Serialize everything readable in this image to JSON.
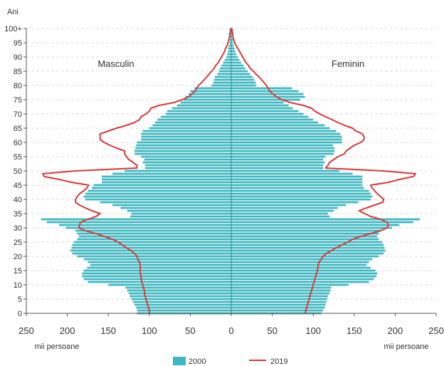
{
  "chart_data": {
    "type": "bar",
    "title": "",
    "ylabel": "Ani",
    "xlabel_left": "mii persoane",
    "xlabel_right": "mii persoane",
    "side_labels": {
      "left": "Masculin",
      "right": "Feminin"
    },
    "xlim": [
      -250,
      250
    ],
    "ylim": [
      0,
      100
    ],
    "x_ticks": [
      {
        "value": -250,
        "label": "250"
      },
      {
        "value": -200,
        "label": "200"
      },
      {
        "value": -150,
        "label": "150"
      },
      {
        "value": -100,
        "label": "100"
      },
      {
        "value": -50,
        "label": "50"
      },
      {
        "value": 0,
        "label": "0"
      },
      {
        "value": 50,
        "label": "50"
      },
      {
        "value": 100,
        "label": "100"
      },
      {
        "value": 150,
        "label": "150"
      },
      {
        "value": 200,
        "label": "200"
      },
      {
        "value": 250,
        "label": "250"
      }
    ],
    "y_ticks": [
      {
        "value": 0,
        "label": "0"
      },
      {
        "value": 5,
        "label": "5"
      },
      {
        "value": 10,
        "label": "10"
      },
      {
        "value": 15,
        "label": "15"
      },
      {
        "value": 20,
        "label": "20"
      },
      {
        "value": 25,
        "label": "25"
      },
      {
        "value": 30,
        "label": "30"
      },
      {
        "value": 35,
        "label": "35"
      },
      {
        "value": 40,
        "label": "40"
      },
      {
        "value": 45,
        "label": "45"
      },
      {
        "value": 50,
        "label": "50"
      },
      {
        "value": 55,
        "label": "55"
      },
      {
        "value": 60,
        "label": "60"
      },
      {
        "value": 65,
        "label": "65"
      },
      {
        "value": 70,
        "label": "70"
      },
      {
        "value": 75,
        "label": "75"
      },
      {
        "value": 80,
        "label": "80"
      },
      {
        "value": 85,
        "label": "85"
      },
      {
        "value": 90,
        "label": "90"
      },
      {
        "value": 95,
        "label": "95"
      },
      {
        "value": 100,
        "label": "100+"
      }
    ],
    "grid": true,
    "legend": {
      "position": "bottom-center"
    },
    "series": [
      {
        "name": "2000",
        "kind": "bar",
        "color": "#3fb8c2",
        "male": [
          115,
          115,
          116,
          118,
          120,
          122,
          124,
          125,
          127,
          129,
          150,
          175,
          180,
          182,
          182,
          180,
          176,
          172,
          175,
          180,
          188,
          194,
          196,
          195,
          194,
          192,
          188,
          186,
          188,
          190,
          202,
          210,
          225,
          232,
          123,
          122,
          127,
          135,
          145,
          160,
          178,
          180,
          178,
          175,
          170,
          168,
          158,
          158,
          158,
          145,
          130,
          105,
          105,
          108,
          106,
          110,
          118,
          118,
          117,
          116,
          115,
          110,
          110,
          110,
          108,
          100,
          96,
          93,
          90,
          86,
          80,
          78,
          72,
          66,
          62,
          58,
          56,
          52,
          50,
          45,
          24,
          22,
          21,
          20,
          17,
          15,
          14,
          12,
          10,
          8,
          6,
          5,
          4,
          4,
          3,
          2,
          2,
          1,
          1,
          1,
          1
        ],
        "female": [
          110,
          112,
          114,
          115,
          116,
          117,
          118,
          120,
          121,
          122,
          143,
          168,
          174,
          177,
          178,
          176,
          170,
          165,
          168,
          172,
          180,
          186,
          188,
          187,
          186,
          184,
          180,
          178,
          180,
          183,
          196,
          205,
          222,
          230,
          120,
          118,
          125,
          130,
          140,
          155,
          170,
          172,
          170,
          168,
          162,
          160,
          160,
          160,
          160,
          148,
          132,
          112,
          112,
          114,
          112,
          115,
          125,
          126,
          126,
          124,
          135,
          135,
          135,
          133,
          128,
          120,
          114,
          106,
          100,
          94,
          88,
          82,
          75,
          70,
          64,
          84,
          90,
          88,
          82,
          74,
          30,
          30,
          28,
          26,
          23,
          20,
          17,
          15,
          12,
          10,
          8,
          6,
          5,
          4,
          3,
          2,
          2,
          1,
          1,
          1,
          1
        ]
      },
      {
        "name": "2019",
        "kind": "line",
        "color": "#d63a3a",
        "male": [
          100,
          100,
          101,
          102,
          103,
          104,
          105,
          106,
          106,
          107,
          108,
          109,
          110,
          110,
          111,
          111,
          111,
          111,
          112,
          114,
          115,
          118,
          122,
          128,
          133,
          138,
          145,
          155,
          165,
          178,
          186,
          185,
          184,
          175,
          165,
          160,
          170,
          178,
          185,
          190,
          190,
          188,
          185,
          180,
          176,
          174,
          195,
          210,
          228,
          230,
          190,
          115,
          115,
          120,
          125,
          128,
          130,
          130,
          140,
          148,
          155,
          160,
          160,
          160,
          150,
          140,
          128,
          118,
          112,
          110,
          104,
          100,
          98,
          88,
          70,
          60,
          52,
          48,
          44,
          42,
          40,
          36,
          33,
          30,
          27,
          24,
          21,
          19,
          16,
          14,
          12,
          10,
          8,
          7,
          5,
          4,
          3,
          2,
          2,
          1,
          1
        ],
        "female": [
          90,
          91,
          92,
          93,
          94,
          95,
          96,
          97,
          98,
          99,
          100,
          101,
          102,
          103,
          104,
          105,
          106,
          106,
          107,
          110,
          112,
          116,
          122,
          128,
          135,
          142,
          148,
          158,
          170,
          182,
          190,
          192,
          190,
          182,
          170,
          163,
          156,
          165,
          175,
          185,
          186,
          182,
          178,
          175,
          172,
          170,
          192,
          205,
          222,
          225,
          185,
          115,
          118,
          120,
          125,
          130,
          138,
          140,
          145,
          150,
          158,
          162,
          162,
          160,
          152,
          148,
          138,
          130,
          123,
          115,
          108,
          102,
          98,
          88,
          72,
          62,
          55,
          51,
          47,
          45,
          43,
          40,
          37,
          34,
          30,
          27,
          23,
          21,
          18,
          16,
          14,
          12,
          10,
          8,
          6,
          4,
          3,
          2,
          2,
          1,
          1
        ]
      }
    ]
  }
}
